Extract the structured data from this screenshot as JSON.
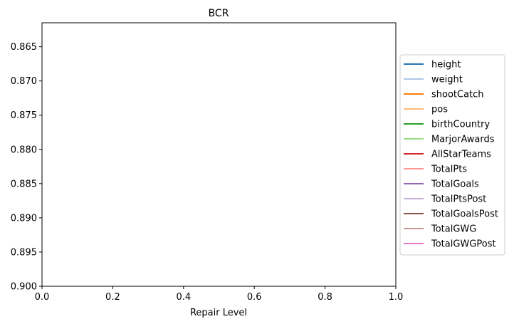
{
  "chart_data": {
    "type": "line",
    "title": "BCR",
    "xlabel": "Repair Level",
    "ylabel": "",
    "xlim": [
      0.0,
      1.0
    ],
    "ylim": [
      0.9,
      0.8615
    ],
    "y_inverted": true,
    "grid": false,
    "legend_position": "center-right outside",
    "x_ticks": [
      0.0,
      0.2,
      0.4,
      0.6,
      0.8,
      1.0
    ],
    "x_tick_labels": [
      "0.0",
      "0.2",
      "0.4",
      "0.6",
      "0.8",
      "1.0"
    ],
    "y_ticks": [
      0.865,
      0.87,
      0.875,
      0.88,
      0.885,
      0.89,
      0.895,
      0.9
    ],
    "y_tick_labels": [
      "0.865",
      "0.870",
      "0.875",
      "0.880",
      "0.885",
      "0.890",
      "0.895",
      "0.900"
    ],
    "series": [
      {
        "name": "height",
        "color": "#1f77b4",
        "points": []
      },
      {
        "name": "weight",
        "color": "#aec7e8",
        "points": []
      },
      {
        "name": "shootCatch",
        "color": "#ff7f0e",
        "points": []
      },
      {
        "name": "pos",
        "color": "#ffbb78",
        "points": []
      },
      {
        "name": "birthCountry",
        "color": "#2ca02c",
        "points": []
      },
      {
        "name": "MarjorAwards",
        "color": "#98df8a",
        "points": []
      },
      {
        "name": "AllStarTeams",
        "color": "#d62728",
        "points": []
      },
      {
        "name": "TotalPts",
        "color": "#ff9896",
        "points": []
      },
      {
        "name": "TotalGoals",
        "color": "#9467bd",
        "points": []
      },
      {
        "name": "TotalPtsPost",
        "color": "#c5b0d5",
        "points": []
      },
      {
        "name": "TotalGoalsPost",
        "color": "#8c564b",
        "points": []
      },
      {
        "name": "TotalGWG",
        "color": "#c49c94",
        "points": []
      },
      {
        "name": "TotalGWGPost",
        "color": "#e377c2",
        "points": []
      }
    ]
  }
}
